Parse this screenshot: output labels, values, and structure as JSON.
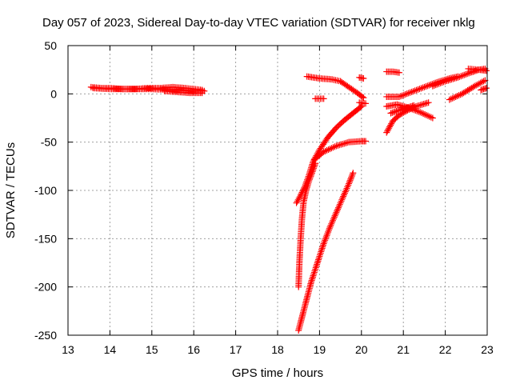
{
  "chart_data": {
    "type": "scatter",
    "title": "Day 057 of 2023, Sidereal Day-to-day VTEC variation (SDTVAR) for receiver nklg",
    "xlabel": "GPS time / hours",
    "ylabel": "SDTVAR / TECUs",
    "xlim": [
      13,
      23
    ],
    "ylim": [
      -250,
      50
    ],
    "xticks": [
      13,
      14,
      15,
      16,
      17,
      18,
      19,
      20,
      21,
      22,
      23
    ],
    "yticks": [
      -250,
      -200,
      -150,
      -100,
      -50,
      0,
      50
    ],
    "grid": true,
    "marker": "+",
    "color": "#ff0000",
    "series": [
      {
        "points": [
          [
            13.55,
            7
          ],
          [
            13.8,
            6
          ],
          [
            14.0,
            6
          ],
          [
            14.3,
            5
          ],
          [
            14.6,
            5
          ],
          [
            14.9,
            6
          ],
          [
            15.2,
            6
          ],
          [
            15.5,
            7
          ],
          [
            15.8,
            6
          ],
          [
            16.0,
            5
          ],
          [
            16.2,
            4
          ]
        ]
      },
      {
        "points": [
          [
            13.6,
            6
          ],
          [
            14.0,
            5
          ],
          [
            14.5,
            5
          ],
          [
            15.0,
            5
          ],
          [
            15.5,
            4
          ],
          [
            16.0,
            3
          ],
          [
            16.25,
            3
          ]
        ]
      },
      {
        "points": [
          [
            15.3,
            3
          ],
          [
            15.6,
            2
          ],
          [
            15.9,
            1
          ],
          [
            16.2,
            1
          ]
        ]
      },
      {
        "points": [
          [
            18.5,
            -200
          ],
          [
            18.52,
            -175
          ],
          [
            18.55,
            -150
          ],
          [
            18.58,
            -130
          ],
          [
            18.62,
            -112
          ],
          [
            18.68,
            -100
          ],
          [
            18.75,
            -90
          ],
          [
            18.82,
            -82
          ],
          [
            18.9,
            -72
          ]
        ]
      },
      {
        "points": [
          [
            18.45,
            -113
          ],
          [
            18.55,
            -105
          ],
          [
            18.65,
            -96
          ],
          [
            18.75,
            -84
          ],
          [
            18.85,
            -70
          ],
          [
            19.0,
            -58
          ],
          [
            19.2,
            -45
          ],
          [
            19.4,
            -35
          ],
          [
            19.6,
            -27
          ],
          [
            19.8,
            -20
          ],
          [
            20.0,
            -13
          ]
        ]
      },
      {
        "points": [
          [
            18.88,
            -68
          ],
          [
            19.1,
            -60
          ],
          [
            19.4,
            -54
          ],
          [
            19.7,
            -50
          ],
          [
            20.0,
            -49
          ],
          [
            20.1,
            -49
          ]
        ]
      },
      {
        "points": [
          [
            18.5,
            -245
          ],
          [
            18.65,
            -220
          ],
          [
            18.8,
            -195
          ],
          [
            18.95,
            -175
          ],
          [
            19.1,
            -155
          ],
          [
            19.25,
            -138
          ],
          [
            19.4,
            -123
          ],
          [
            19.55,
            -108
          ],
          [
            19.7,
            -93
          ],
          [
            19.8,
            -82
          ]
        ]
      },
      {
        "points": [
          [
            18.7,
            18
          ],
          [
            19.0,
            16
          ],
          [
            19.3,
            15
          ],
          [
            19.5,
            13
          ]
        ]
      },
      {
        "points": [
          [
            19.5,
            13
          ],
          [
            19.7,
            7
          ],
          [
            19.9,
            1
          ],
          [
            20.05,
            -4
          ]
        ]
      },
      {
        "points": [
          [
            18.9,
            -5
          ],
          [
            19.1,
            -5
          ]
        ]
      },
      {
        "points": [
          [
            19.95,
            -9
          ],
          [
            20.1,
            -10
          ]
        ]
      },
      {
        "points": [
          [
            19.95,
            17
          ],
          [
            20.05,
            16
          ]
        ]
      },
      {
        "points": [
          [
            20.6,
            23
          ],
          [
            20.75,
            23
          ],
          [
            20.9,
            22
          ]
        ]
      },
      {
        "points": [
          [
            20.6,
            -40
          ],
          [
            20.75,
            -28
          ],
          [
            20.9,
            -22
          ],
          [
            21.1,
            -17
          ],
          [
            21.3,
            -13
          ],
          [
            21.6,
            -9
          ]
        ]
      },
      {
        "points": [
          [
            20.6,
            -13
          ],
          [
            20.85,
            -11
          ],
          [
            21.1,
            -14
          ],
          [
            21.4,
            -19
          ],
          [
            21.7,
            -25
          ]
        ]
      },
      {
        "points": [
          [
            20.7,
            -20
          ],
          [
            20.9,
            -17
          ],
          [
            21.05,
            -15
          ],
          [
            21.25,
            -12
          ]
        ]
      },
      {
        "points": [
          [
            20.6,
            -3
          ],
          [
            20.9,
            -3
          ],
          [
            21.2,
            2
          ],
          [
            21.5,
            7
          ],
          [
            21.8,
            12
          ],
          [
            22.1,
            16
          ],
          [
            22.3,
            18
          ]
        ]
      },
      {
        "points": [
          [
            21.7,
            8
          ],
          [
            22.0,
            13
          ],
          [
            22.3,
            17
          ],
          [
            22.6,
            22
          ],
          [
            22.8,
            25
          ],
          [
            22.95,
            26
          ]
        ]
      },
      {
        "points": [
          [
            22.1,
            -6
          ],
          [
            22.4,
            0
          ],
          [
            22.7,
            8
          ],
          [
            22.95,
            14
          ]
        ]
      },
      {
        "points": [
          [
            22.55,
            26
          ],
          [
            22.8,
            25
          ],
          [
            22.98,
            24
          ]
        ]
      },
      {
        "points": [
          [
            22.85,
            4
          ],
          [
            22.98,
            6
          ]
        ]
      }
    ]
  }
}
